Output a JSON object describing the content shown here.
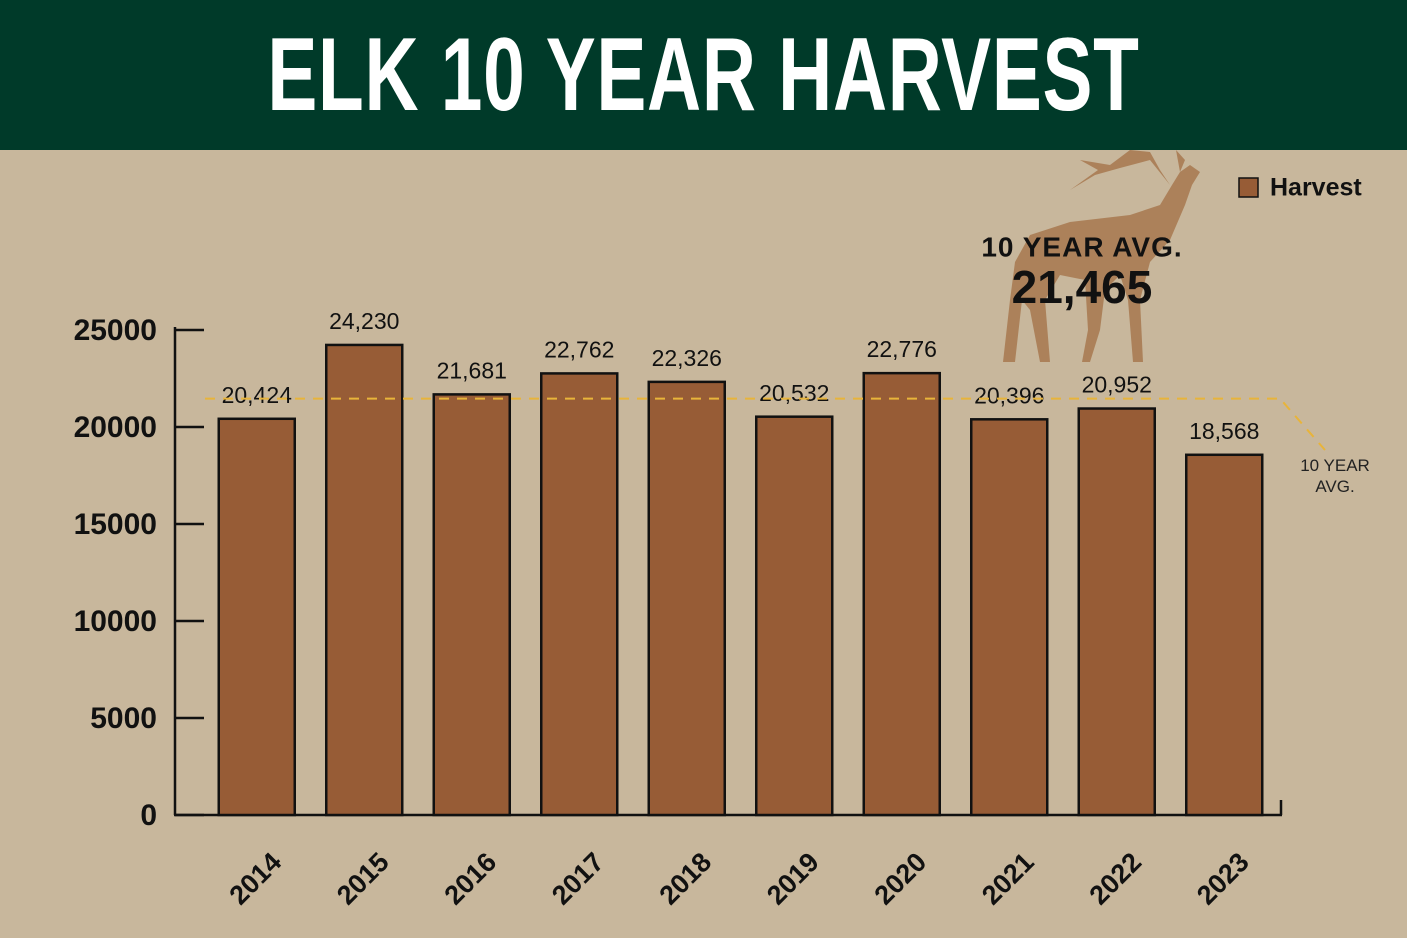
{
  "chart_data": {
    "type": "bar",
    "title": "ELK 10 YEAR HARVEST",
    "categories": [
      "2014",
      "2015",
      "2016",
      "2017",
      "2018",
      "2019",
      "2020",
      "2021",
      "2022",
      "2023"
    ],
    "series": [
      {
        "name": "Harvest",
        "color": "#975c36",
        "values": [
          20424,
          24230,
          21681,
          22762,
          22326,
          20532,
          22776,
          20396,
          20952,
          18568
        ],
        "value_labels": [
          "20,424",
          "24,230",
          "21,681",
          "22,762",
          "22,326",
          "20,532",
          "22,776",
          "20,396",
          "20,952",
          "18,568"
        ]
      }
    ],
    "ylim": [
      0,
      25000
    ],
    "yticks": [
      0,
      5000,
      10000,
      15000,
      20000,
      25000
    ],
    "legend": "top-right",
    "average": {
      "value": 21465,
      "label": "21,465",
      "title": "10 YEAR AVG.",
      "line_label": "10 YEAR AVG.",
      "color": "#e8b43a"
    }
  }
}
